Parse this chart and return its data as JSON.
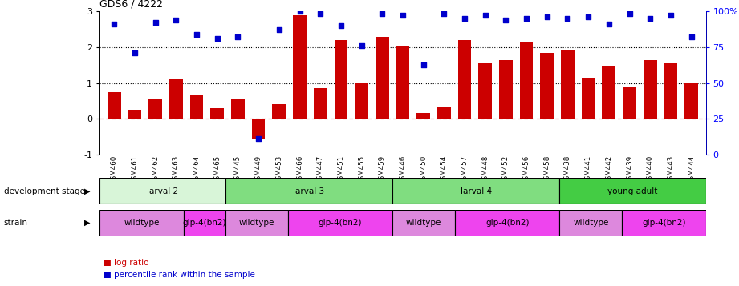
{
  "title": "GDS6 / 4222",
  "samples": [
    "GSM460",
    "GSM461",
    "GSM462",
    "GSM463",
    "GSM464",
    "GSM465",
    "GSM445",
    "GSM449",
    "GSM453",
    "GSM466",
    "GSM447",
    "GSM451",
    "GSM455",
    "GSM459",
    "GSM446",
    "GSM450",
    "GSM454",
    "GSM457",
    "GSM448",
    "GSM452",
    "GSM456",
    "GSM458",
    "GSM438",
    "GSM441",
    "GSM442",
    "GSM439",
    "GSM440",
    "GSM443",
    "GSM444"
  ],
  "log_ratio": [
    0.75,
    0.25,
    0.55,
    1.1,
    0.65,
    0.3,
    0.55,
    -0.55,
    0.4,
    2.9,
    0.85,
    2.2,
    1.0,
    2.3,
    2.05,
    0.15,
    0.35,
    2.2,
    1.55,
    1.65,
    2.15,
    1.85,
    1.9,
    1.15,
    1.45,
    0.9,
    1.65,
    1.55,
    1.0
  ],
  "percentile": [
    2.65,
    1.85,
    2.7,
    2.75,
    2.35,
    2.25,
    2.3,
    -0.55,
    2.5,
    3.0,
    2.95,
    2.6,
    2.05,
    2.95,
    2.9,
    1.5,
    2.95,
    2.8,
    2.9,
    2.75,
    2.8,
    2.85,
    2.8,
    2.85,
    2.65,
    2.95,
    2.8,
    2.9,
    2.3
  ],
  "development_stages": [
    {
      "label": "larval 2",
      "start": 0,
      "end": 6,
      "color": "#d8f5d8"
    },
    {
      "label": "larval 3",
      "start": 6,
      "end": 14,
      "color": "#80dd80"
    },
    {
      "label": "larval 4",
      "start": 14,
      "end": 22,
      "color": "#80dd80"
    },
    {
      "label": "young adult",
      "start": 22,
      "end": 29,
      "color": "#44cc44"
    }
  ],
  "strains": [
    {
      "label": "wildtype",
      "start": 0,
      "end": 4,
      "color": "#dd88dd"
    },
    {
      "label": "glp-4(bn2)",
      "start": 4,
      "end": 6,
      "color": "#ee44ee"
    },
    {
      "label": "wildtype",
      "start": 6,
      "end": 9,
      "color": "#dd88dd"
    },
    {
      "label": "glp-4(bn2)",
      "start": 9,
      "end": 14,
      "color": "#ee44ee"
    },
    {
      "label": "wildtype",
      "start": 14,
      "end": 17,
      "color": "#dd88dd"
    },
    {
      "label": "glp-4(bn2)",
      "start": 17,
      "end": 22,
      "color": "#ee44ee"
    },
    {
      "label": "wildtype",
      "start": 22,
      "end": 25,
      "color": "#dd88dd"
    },
    {
      "label": "glp-4(bn2)",
      "start": 25,
      "end": 29,
      "color": "#ee44ee"
    }
  ],
  "bar_color": "#cc0000",
  "dot_color": "#0000cc",
  "ylim": [
    -1,
    3
  ],
  "yticks_left": [
    -1,
    0,
    1,
    2,
    3
  ],
  "right_tick_labels": [
    "0",
    "25",
    "50",
    "75",
    "100%"
  ]
}
